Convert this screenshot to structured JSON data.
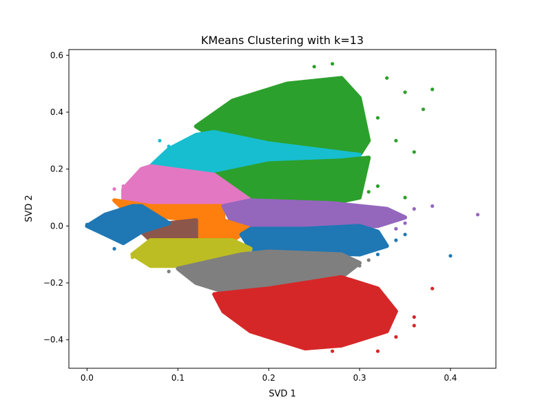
{
  "chart_data": {
    "type": "scatter",
    "title": "KMeans Clustering with k=13",
    "xlabel": "SVD 1",
    "ylabel": "SVD 2",
    "xlim": [
      -0.02,
      0.45
    ],
    "ylim": [
      -0.5,
      0.62
    ],
    "xticks": [
      0.0,
      0.1,
      0.2,
      0.3,
      0.4
    ],
    "xtick_labels": [
      "0.0",
      "0.1",
      "0.2",
      "0.3",
      "0.4"
    ],
    "yticks": [
      -0.4,
      -0.2,
      0.0,
      0.2,
      0.4,
      0.6
    ],
    "ytick_labels": [
      "−0.4",
      "−0.2",
      "0.0",
      "0.2",
      "0.4",
      "0.6"
    ],
    "grid": false,
    "legend": "none",
    "series": [
      {
        "color": "#2ca02c",
        "region": [
          [
            0.12,
            0.35
          ],
          [
            0.16,
            0.44
          ],
          [
            0.22,
            0.5
          ],
          [
            0.28,
            0.52
          ],
          [
            0.3,
            0.45
          ],
          [
            0.31,
            0.3
          ],
          [
            0.3,
            0.25
          ],
          [
            0.2,
            0.28
          ],
          [
            0.13,
            0.33
          ]
        ],
        "outliers": [
          [
            0.35,
            0.47
          ],
          [
            0.38,
            0.48
          ],
          [
            0.37,
            0.41
          ],
          [
            0.33,
            0.52
          ],
          [
            0.27,
            0.57
          ],
          [
            0.25,
            0.56
          ],
          [
            0.32,
            0.38
          ],
          [
            0.34,
            0.3
          ],
          [
            0.36,
            0.26
          ]
        ]
      },
      {
        "color": "#17becf",
        "region": [
          [
            0.07,
            0.21
          ],
          [
            0.09,
            0.27
          ],
          [
            0.12,
            0.32
          ],
          [
            0.14,
            0.33
          ],
          [
            0.2,
            0.29
          ],
          [
            0.3,
            0.25
          ],
          [
            0.28,
            0.23
          ],
          [
            0.2,
            0.22
          ],
          [
            0.14,
            0.19
          ]
        ],
        "outliers": [
          [
            0.09,
            0.28
          ],
          [
            0.08,
            0.3
          ]
        ]
      },
      {
        "color": "#2ca02c",
        "region": [
          [
            0.14,
            0.18
          ],
          [
            0.2,
            0.22
          ],
          [
            0.28,
            0.23
          ],
          [
            0.31,
            0.24
          ],
          [
            0.3,
            0.1
          ],
          [
            0.27,
            0.08
          ],
          [
            0.18,
            0.09
          ]
        ],
        "outliers": [
          [
            0.32,
            0.14
          ],
          [
            0.31,
            0.12
          ],
          [
            0.35,
            0.1
          ]
        ]
      },
      {
        "color": "#e377c2",
        "region": [
          [
            0.04,
            0.13
          ],
          [
            0.06,
            0.2
          ],
          [
            0.07,
            0.21
          ],
          [
            0.14,
            0.18
          ],
          [
            0.18,
            0.09
          ],
          [
            0.15,
            0.07
          ],
          [
            0.07,
            0.07
          ],
          [
            0.04,
            0.09
          ]
        ],
        "outliers": [
          [
            0.04,
            0.14
          ],
          [
            0.03,
            0.13
          ]
        ]
      },
      {
        "color": "#ff7f0e",
        "region": [
          [
            0.03,
            0.09
          ],
          [
            0.04,
            0.06
          ],
          [
            0.09,
            0.03
          ],
          [
            0.12,
            0.02
          ],
          [
            0.15,
            0.02
          ],
          [
            0.15,
            0.07
          ],
          [
            0.07,
            0.07
          ]
        ],
        "outliers": []
      },
      {
        "color": "#9467bd",
        "region": [
          [
            0.15,
            0.07
          ],
          [
            0.18,
            0.09
          ],
          [
            0.27,
            0.08
          ],
          [
            0.33,
            0.06
          ],
          [
            0.35,
            0.03
          ],
          [
            0.32,
            0.0
          ],
          [
            0.24,
            -0.01
          ],
          [
            0.18,
            -0.01
          ],
          [
            0.16,
            0.01
          ]
        ],
        "outliers": [
          [
            0.36,
            0.06
          ],
          [
            0.38,
            0.07
          ],
          [
            0.43,
            0.04
          ],
          [
            0.35,
            0.01
          ],
          [
            0.34,
            -0.01
          ]
        ]
      },
      {
        "color": "#ff7f0e",
        "region": [
          [
            0.12,
            0.02
          ],
          [
            0.15,
            0.02
          ],
          [
            0.16,
            0.01
          ],
          [
            0.18,
            -0.01
          ],
          [
            0.17,
            -0.03
          ],
          [
            0.16,
            -0.05
          ],
          [
            0.12,
            -0.05
          ],
          [
            0.12,
            -0.02
          ]
        ],
        "outliers": []
      },
      {
        "color": "#8c564b",
        "region": [
          [
            0.06,
            -0.02
          ],
          [
            0.09,
            0.01
          ],
          [
            0.12,
            0.02
          ],
          [
            0.12,
            -0.05
          ],
          [
            0.07,
            -0.05
          ]
        ],
        "outliers": []
      },
      {
        "color": "#1f77b4",
        "region": [
          [
            0.0,
            0.0
          ],
          [
            0.02,
            0.04
          ],
          [
            0.05,
            0.07
          ],
          [
            0.06,
            0.07
          ],
          [
            0.09,
            0.01
          ],
          [
            0.06,
            -0.02
          ],
          [
            0.04,
            -0.06
          ],
          [
            0.02,
            -0.03
          ]
        ],
        "outliers": [
          [
            0.0,
            0.005
          ],
          [
            0.01,
            0.02
          ],
          [
            0.03,
            -0.08
          ]
        ]
      },
      {
        "color": "#1f77b4",
        "region": [
          [
            0.17,
            -0.03
          ],
          [
            0.18,
            -0.01
          ],
          [
            0.24,
            -0.01
          ],
          [
            0.3,
            0.0
          ],
          [
            0.32,
            -0.02
          ],
          [
            0.33,
            -0.07
          ],
          [
            0.3,
            -0.1
          ],
          [
            0.2,
            -0.09
          ],
          [
            0.18,
            -0.08
          ]
        ],
        "outliers": [
          [
            0.34,
            -0.05
          ],
          [
            0.35,
            -0.03
          ],
          [
            0.32,
            -0.1
          ],
          [
            0.4,
            -0.105
          ]
        ]
      },
      {
        "color": "#bcbd22",
        "region": [
          [
            0.05,
            -0.1
          ],
          [
            0.07,
            -0.05
          ],
          [
            0.12,
            -0.05
          ],
          [
            0.16,
            -0.05
          ],
          [
            0.18,
            -0.08
          ],
          [
            0.17,
            -0.1
          ],
          [
            0.1,
            -0.14
          ],
          [
            0.07,
            -0.14
          ]
        ],
        "outliers": [
          [
            0.05,
            -0.11
          ],
          [
            0.06,
            -0.12
          ]
        ]
      },
      {
        "color": "#7f7f7f",
        "region": [
          [
            0.1,
            -0.15
          ],
          [
            0.17,
            -0.1
          ],
          [
            0.2,
            -0.09
          ],
          [
            0.28,
            -0.1
          ],
          [
            0.3,
            -0.13
          ],
          [
            0.28,
            -0.18
          ],
          [
            0.2,
            -0.22
          ],
          [
            0.15,
            -0.23
          ],
          [
            0.12,
            -0.2
          ]
        ],
        "outliers": [
          [
            0.09,
            -0.16
          ],
          [
            0.3,
            -0.14
          ],
          [
            0.31,
            -0.12
          ]
        ]
      },
      {
        "color": "#d62728",
        "region": [
          [
            0.14,
            -0.24
          ],
          [
            0.2,
            -0.22
          ],
          [
            0.28,
            -0.18
          ],
          [
            0.32,
            -0.22
          ],
          [
            0.34,
            -0.3
          ],
          [
            0.33,
            -0.37
          ],
          [
            0.28,
            -0.42
          ],
          [
            0.24,
            -0.43
          ],
          [
            0.18,
            -0.37
          ],
          [
            0.15,
            -0.3
          ]
        ],
        "outliers": [
          [
            0.36,
            -0.35
          ],
          [
            0.38,
            -0.22
          ],
          [
            0.36,
            -0.32
          ],
          [
            0.34,
            -0.39
          ],
          [
            0.32,
            -0.44
          ],
          [
            0.27,
            -0.44
          ]
        ]
      }
    ]
  }
}
